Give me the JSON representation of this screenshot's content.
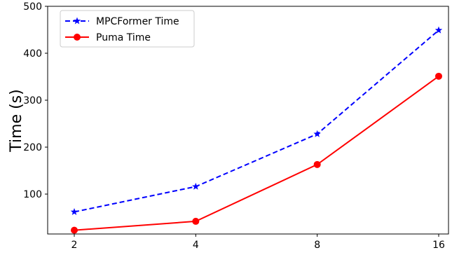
{
  "chart_data": {
    "type": "line",
    "x": [
      2,
      4,
      8,
      16
    ],
    "x_ticks": [
      "2",
      "4",
      "8",
      "16"
    ],
    "ylabel": "Time (s)",
    "ylim": [
      15,
      500
    ],
    "y_ticks": [
      100,
      200,
      300,
      400,
      500
    ],
    "grid": false,
    "legend_position": "top-left",
    "series": [
      {
        "name": "MPCFormer Time",
        "values": [
          62,
          116,
          228,
          449
        ],
        "color": "#0000ff",
        "line_style": "dashed",
        "marker": "star"
      },
      {
        "name": "Puma Time",
        "values": [
          23,
          42,
          163,
          351
        ],
        "color": "#ff0000",
        "line_style": "solid",
        "marker": "circle"
      }
    ]
  }
}
